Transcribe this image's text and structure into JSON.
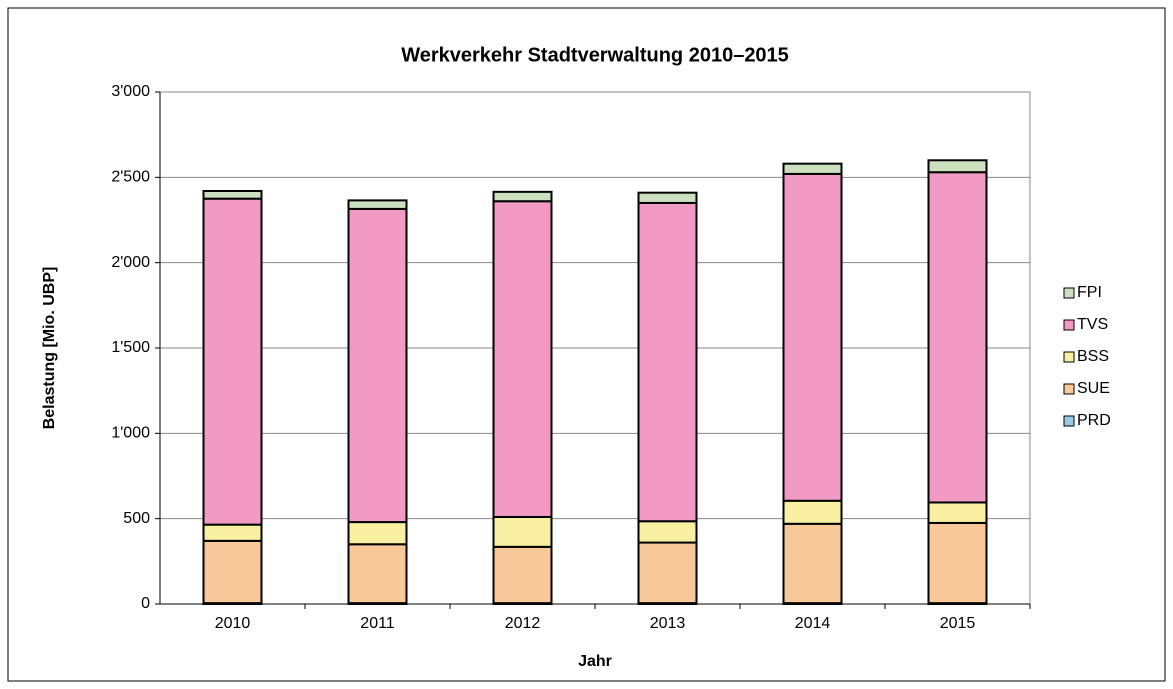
{
  "chart_data": {
    "type": "bar",
    "stacked": true,
    "title": "Werkverkehr Stadtverwaltung 2010–2015",
    "x_label": "Jahr",
    "y_label": "Belastung [Mio. UBP]",
    "categories": [
      "2010",
      "2011",
      "2012",
      "2013",
      "2014",
      "2015"
    ],
    "series": [
      {
        "name": "PRD",
        "color": "#9cc8e8",
        "values": [
          5,
          5,
          5,
          5,
          5,
          5
        ]
      },
      {
        "name": "SUE",
        "color": "#f8c898",
        "values": [
          365,
          345,
          330,
          355,
          465,
          470
        ]
      },
      {
        "name": "BSS",
        "color": "#f8f0a0",
        "values": [
          95,
          130,
          175,
          125,
          135,
          120
        ]
      },
      {
        "name": "TVS",
        "color": "#f09ac4",
        "values": [
          1910,
          1835,
          1850,
          1865,
          1915,
          1935
        ]
      },
      {
        "name": "FPI",
        "color": "#cce0c0",
        "values": [
          45,
          50,
          55,
          60,
          60,
          70
        ]
      }
    ],
    "ylim": [
      0,
      3000
    ],
    "yticks": [
      0,
      500,
      {
        "value": 1000,
        "label": "1'000"
      },
      {
        "value": 1500,
        "label": "1'500"
      },
      {
        "value": 2000,
        "label": "2'000"
      },
      {
        "value": 2500,
        "label": "2'500"
      },
      {
        "value": 3000,
        "label": "3'000"
      }
    ],
    "grid": true,
    "legend": "right"
  }
}
